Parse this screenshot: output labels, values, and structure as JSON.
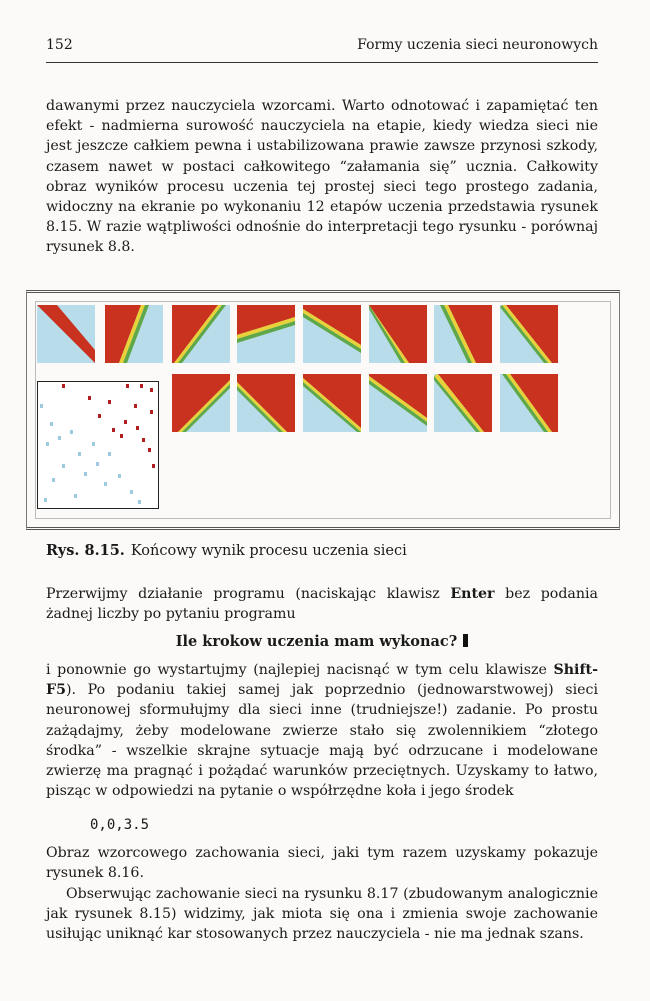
{
  "header": {
    "page_number": "152",
    "running_title": "Formy uczenia sieci neuronowych"
  },
  "paragraph1": "dawanymi przez nauczyciela wzorcami. Warto odnotować i zapamiętać ten efekt - nadmierna surowość nauczyciela na etapie, kiedy wiedza sieci nie jest jeszcze całkiem pewna i ustabilizowana prawie zawsze przynosi szkody, czasem nawet w postaci całkowitego “załamania się” ucznia. Całkowity obraz wyników procesu uczenia tej prostej sieci tego prostego zadania, widoczny na ekranie po wykonaniu 12 etapów uczenia przedstawia rysunek 8.15. W razie wątpliwości odnośnie do interpretacji tego rysunku - porównaj rysunek 8.8.",
  "figure": {
    "colors": {
      "red": "#c8321f",
      "blue": "#b9dcea",
      "yellow": "#e8d23a",
      "green": "#5fa84a"
    }
  },
  "caption": {
    "label": "Rys. 8.15.",
    "text": "Końcowy wynik procesu uczenia sieci"
  },
  "paragraph2": {
    "before": "Przerwijmy działanie programu (naciskając klawisz ",
    "key": "Enter",
    "after": " bez podania żadnej liczby po pytaniu programu"
  },
  "prompt_line": "Ile krokow uczenia mam wykonac?",
  "paragraph3": {
    "before": "i ponownie go wystartujmy (najlepiej nacisnąć w tym celu klawisze ",
    "key": "Shift-F5",
    "after": "). Po podaniu takiej samej jak poprzednio (jednowarstwowej) sieci neuronowej sformułujmy dla sieci inne (trudniejsze!) zadanie. Po prostu zażądajmy, żeby modelowane zwierze stało się zwolennikiem “złotego środka” - wszelkie skrajne sytuacje mają być odrzucane i modelowane zwierzę ma pragnąć i pożądać warunków przeciętnych. Uzyskamy to łatwo, pisząc w odpowiedzi na pytanie o współrzędne koła i jego środek"
  },
  "code_line": "0,0,3.5",
  "paragraph4": "Obraz wzorcowego zachowania sieci, jaki tym razem uzyskamy pokazuje rysunek 8.16.",
  "paragraph5": "Obserwując zachowanie sieci na rysunku 8.17 (zbudowanym analogicznie jak rysunek 8.15) widzimy, jak miota się ona i zmienia swoje zachowanie usiłując uniknąć kar stosowanych przez nauczyciela - nie ma jednak szans."
}
